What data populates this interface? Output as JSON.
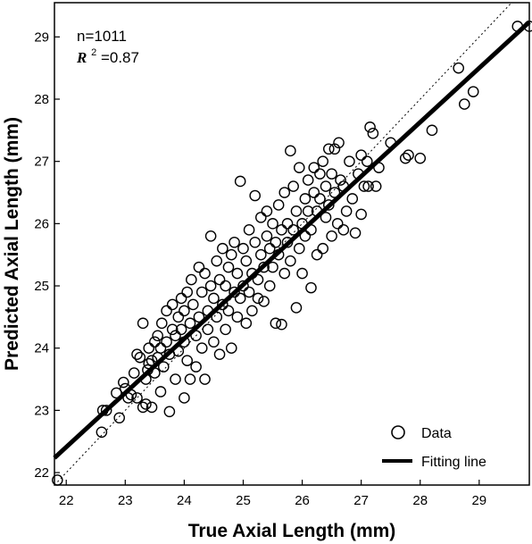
{
  "chart_data": {
    "type": "scatter",
    "xlabel": "True Axial Length (mm)",
    "ylabel": "Predicted Axial Length (mm)",
    "xlim": [
      21.8,
      29.85
    ],
    "ylim": [
      21.8,
      29.55
    ],
    "xticks": [
      "22",
      "23",
      "24",
      "25",
      "26",
      "27",
      "28",
      "29"
    ],
    "yticks": [
      "22",
      "23",
      "24",
      "25",
      "26",
      "27",
      "28",
      "29"
    ],
    "annotations": {
      "n_text": "n=1011",
      "r2_symbol": "R",
      "r2_exponent": "2",
      "r2_value": "=0.87"
    },
    "legend": {
      "position": "bottom-right",
      "entries": [
        "Data",
        "Fitting line"
      ]
    },
    "fit_line": {
      "slope": 0.87,
      "intercept": 3.27
    },
    "identity_line": true,
    "grid": false,
    "series": [
      {
        "name": "Data",
        "points": [
          [
            21.85,
            21.88
          ],
          [
            22.6,
            22.65
          ],
          [
            22.62,
            23.0
          ],
          [
            22.68,
            23.0
          ],
          [
            22.85,
            23.28
          ],
          [
            22.9,
            22.88
          ],
          [
            22.97,
            23.45
          ],
          [
            23.0,
            23.35
          ],
          [
            23.05,
            23.2
          ],
          [
            23.1,
            23.25
          ],
          [
            23.15,
            23.6
          ],
          [
            23.2,
            23.2
          ],
          [
            23.2,
            23.9
          ],
          [
            23.25,
            23.85
          ],
          [
            23.3,
            24.4
          ],
          [
            23.3,
            23.05
          ],
          [
            23.35,
            23.1
          ],
          [
            23.35,
            23.5
          ],
          [
            23.38,
            23.65
          ],
          [
            23.4,
            23.75
          ],
          [
            23.4,
            24.0
          ],
          [
            23.45,
            23.05
          ],
          [
            23.45,
            23.8
          ],
          [
            23.5,
            23.6
          ],
          [
            23.5,
            24.1
          ],
          [
            23.55,
            23.85
          ],
          [
            23.55,
            24.2
          ],
          [
            23.6,
            23.3
          ],
          [
            23.6,
            24.0
          ],
          [
            23.62,
            24.4
          ],
          [
            23.65,
            23.7
          ],
          [
            23.7,
            24.1
          ],
          [
            23.7,
            24.6
          ],
          [
            23.75,
            22.98
          ],
          [
            23.75,
            23.9
          ],
          [
            23.8,
            24.3
          ],
          [
            23.8,
            24.7
          ],
          [
            23.85,
            23.5
          ],
          [
            23.85,
            24.2
          ],
          [
            23.9,
            24.5
          ],
          [
            23.9,
            23.95
          ],
          [
            23.95,
            24.8
          ],
          [
            23.95,
            24.3
          ],
          [
            24.0,
            23.2
          ],
          [
            24.0,
            24.1
          ],
          [
            24.0,
            24.6
          ],
          [
            24.05,
            23.8
          ],
          [
            24.05,
            24.9
          ],
          [
            24.1,
            24.4
          ],
          [
            24.1,
            23.5
          ],
          [
            24.12,
            25.1
          ],
          [
            24.15,
            24.7
          ],
          [
            24.2,
            24.2
          ],
          [
            24.2,
            23.7
          ],
          [
            24.25,
            25.3
          ],
          [
            24.25,
            24.5
          ],
          [
            24.3,
            24.9
          ],
          [
            24.3,
            24.0
          ],
          [
            24.35,
            23.5
          ],
          [
            24.35,
            25.2
          ],
          [
            24.4,
            24.6
          ],
          [
            24.4,
            24.3
          ],
          [
            24.45,
            25.0
          ],
          [
            24.45,
            25.8
          ],
          [
            24.5,
            24.8
          ],
          [
            24.5,
            24.1
          ],
          [
            24.55,
            25.4
          ],
          [
            24.55,
            24.5
          ],
          [
            24.6,
            25.1
          ],
          [
            24.6,
            23.9
          ],
          [
            24.65,
            24.7
          ],
          [
            24.65,
            25.6
          ],
          [
            24.7,
            24.3
          ],
          [
            24.7,
            25.0
          ],
          [
            24.75,
            25.3
          ],
          [
            24.75,
            24.6
          ],
          [
            24.8,
            24.0
          ],
          [
            24.8,
            25.5
          ],
          [
            24.85,
            24.9
          ],
          [
            24.85,
            25.7
          ],
          [
            24.9,
            24.5
          ],
          [
            24.9,
            25.2
          ],
          [
            24.95,
            26.68
          ],
          [
            24.95,
            24.8
          ],
          [
            25.0,
            25.6
          ],
          [
            25.0,
            25.0
          ],
          [
            25.05,
            24.4
          ],
          [
            25.05,
            25.4
          ],
          [
            25.1,
            25.9
          ],
          [
            25.1,
            24.9
          ],
          [
            25.15,
            25.2
          ],
          [
            25.15,
            24.6
          ],
          [
            25.2,
            25.7
          ],
          [
            25.2,
            26.45
          ],
          [
            25.25,
            25.1
          ],
          [
            25.25,
            24.8
          ],
          [
            25.3,
            26.1
          ],
          [
            25.3,
            25.5
          ],
          [
            25.35,
            24.75
          ],
          [
            25.35,
            25.3
          ],
          [
            25.4,
            25.8
          ],
          [
            25.4,
            26.2
          ],
          [
            25.45,
            25.0
          ],
          [
            25.45,
            25.6
          ],
          [
            25.5,
            26.0
          ],
          [
            25.5,
            25.3
          ],
          [
            25.55,
            24.4
          ],
          [
            25.55,
            25.7
          ],
          [
            25.6,
            26.3
          ],
          [
            25.6,
            25.5
          ],
          [
            25.65,
            24.38
          ],
          [
            25.65,
            25.9
          ],
          [
            25.7,
            25.2
          ],
          [
            25.7,
            26.5
          ],
          [
            25.75,
            25.7
          ],
          [
            25.75,
            26.0
          ],
          [
            25.8,
            27.17
          ],
          [
            25.8,
            25.4
          ],
          [
            25.85,
            26.6
          ],
          [
            25.85,
            25.9
          ],
          [
            25.9,
            24.65
          ],
          [
            25.9,
            26.2
          ],
          [
            25.95,
            25.6
          ],
          [
            25.95,
            26.9
          ],
          [
            26.0,
            26.0
          ],
          [
            26.0,
            25.2
          ],
          [
            26.05,
            26.4
          ],
          [
            26.05,
            25.8
          ],
          [
            26.1,
            26.7
          ],
          [
            26.1,
            26.2
          ],
          [
            26.15,
            24.97
          ],
          [
            26.15,
            25.9
          ],
          [
            26.2,
            26.5
          ],
          [
            26.2,
            26.9
          ],
          [
            26.25,
            26.2
          ],
          [
            26.25,
            25.5
          ],
          [
            26.3,
            26.8
          ],
          [
            26.3,
            26.4
          ],
          [
            26.35,
            27.0
          ],
          [
            26.35,
            25.6
          ],
          [
            26.4,
            26.6
          ],
          [
            26.4,
            26.1
          ],
          [
            26.45,
            27.2
          ],
          [
            26.45,
            26.3
          ],
          [
            26.5,
            26.8
          ],
          [
            26.5,
            25.8
          ],
          [
            26.55,
            26.5
          ],
          [
            26.55,
            27.2
          ],
          [
            26.6,
            26.0
          ],
          [
            26.62,
            27.3
          ],
          [
            26.65,
            26.7
          ],
          [
            26.7,
            25.9
          ],
          [
            26.7,
            26.6
          ],
          [
            26.75,
            26.2
          ],
          [
            26.8,
            27.0
          ],
          [
            26.85,
            26.4
          ],
          [
            26.9,
            25.85
          ],
          [
            26.95,
            26.8
          ],
          [
            27.0,
            27.1
          ],
          [
            27.0,
            26.15
          ],
          [
            27.05,
            26.6
          ],
          [
            27.1,
            27.0
          ],
          [
            27.12,
            26.6
          ],
          [
            27.15,
            27.55
          ],
          [
            27.2,
            27.45
          ],
          [
            27.25,
            26.6
          ],
          [
            27.3,
            26.9
          ],
          [
            27.5,
            27.3
          ],
          [
            27.75,
            27.05
          ],
          [
            27.8,
            27.1
          ],
          [
            28.0,
            27.05
          ],
          [
            28.2,
            27.5
          ],
          [
            28.65,
            28.5
          ],
          [
            28.75,
            27.92
          ],
          [
            28.9,
            28.12
          ],
          [
            29.65,
            29.17
          ],
          [
            29.85,
            29.17
          ]
        ]
      }
    ]
  }
}
